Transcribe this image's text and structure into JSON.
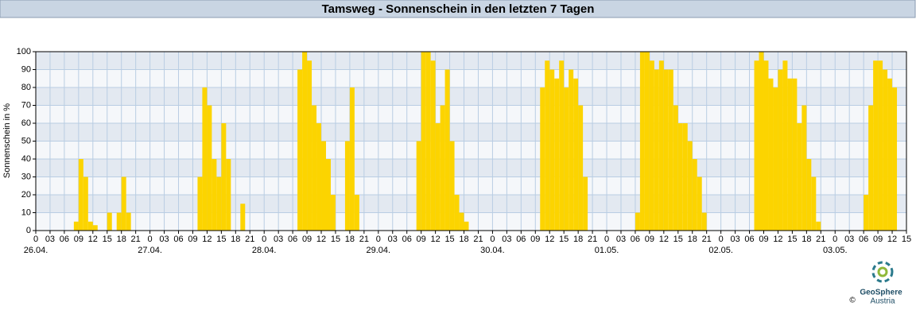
{
  "chart_data": {
    "type": "bar",
    "title": "Tamsweg - Sonnenschein in den letzten 7 Tagen",
    "y_label": "Sonnenschein in %",
    "color": "#fcd400",
    "grid": true,
    "xlim": [
      0,
      183
    ],
    "ylim": [
      0,
      100
    ],
    "yticks": [
      0,
      10,
      20,
      30,
      40,
      50,
      60,
      70,
      80,
      90,
      100
    ],
    "xticks": [
      0,
      {
        "value": 3,
        "label": "03"
      },
      {
        "value": 6,
        "label": "06"
      },
      {
        "value": 9,
        "label": "09"
      },
      12,
      15,
      18,
      21,
      {
        "value": 24,
        "label": "0"
      },
      {
        "value": 27,
        "label": "03"
      },
      {
        "value": 30,
        "label": "06"
      },
      {
        "value": 33,
        "label": "09"
      },
      {
        "value": 36,
        "label": "12"
      },
      {
        "value": 39,
        "label": "15"
      },
      {
        "value": 42,
        "label": "18"
      },
      {
        "value": 45,
        "label": "21"
      },
      {
        "value": 48,
        "label": "0"
      },
      {
        "value": 51,
        "label": "03"
      },
      {
        "value": 54,
        "label": "06"
      },
      {
        "value": 57,
        "label": "09"
      },
      {
        "value": 60,
        "label": "12"
      },
      {
        "value": 63,
        "label": "15"
      },
      {
        "value": 66,
        "label": "18"
      },
      {
        "value": 69,
        "label": "21"
      },
      {
        "value": 72,
        "label": "0"
      },
      {
        "value": 75,
        "label": "03"
      },
      {
        "value": 78,
        "label": "06"
      },
      {
        "value": 81,
        "label": "09"
      },
      {
        "value": 84,
        "label": "12"
      },
      {
        "value": 87,
        "label": "15"
      },
      {
        "value": 90,
        "label": "18"
      },
      {
        "value": 93,
        "label": "21"
      },
      {
        "value": 96,
        "label": "0"
      },
      {
        "value": 99,
        "label": "03"
      },
      {
        "value": 102,
        "label": "06"
      },
      {
        "value": 105,
        "label": "09"
      },
      {
        "value": 108,
        "label": "12"
      },
      {
        "value": 111,
        "label": "15"
      },
      {
        "value": 114,
        "label": "18"
      },
      {
        "value": 117,
        "label": "21"
      },
      {
        "value": 120,
        "label": "0"
      },
      {
        "value": 123,
        "label": "03"
      },
      {
        "value": 126,
        "label": "06"
      },
      {
        "value": 129,
        "label": "09"
      },
      {
        "value": 132,
        "label": "12"
      },
      {
        "value": 135,
        "label": "15"
      },
      {
        "value": 138,
        "label": "18"
      },
      {
        "value": 141,
        "label": "21"
      },
      {
        "value": 144,
        "label": "0"
      },
      {
        "value": 147,
        "label": "03"
      },
      {
        "value": 150,
        "label": "06"
      },
      {
        "value": 153,
        "label": "09"
      },
      {
        "value": 156,
        "label": "12"
      },
      {
        "value": 159,
        "label": "15"
      },
      {
        "value": 162,
        "label": "18"
      },
      {
        "value": 165,
        "label": "21"
      },
      {
        "value": 168,
        "label": "0"
      },
      {
        "value": 171,
        "label": "03"
      },
      {
        "value": 174,
        "label": "06"
      },
      {
        "value": 177,
        "label": "09"
      },
      {
        "value": 180,
        "label": "12"
      },
      {
        "value": 183,
        "label": "15"
      }
    ],
    "date_labels": [
      {
        "value": 0,
        "label": "26.04."
      },
      {
        "value": 24,
        "label": "27.04."
      },
      {
        "value": 48,
        "label": "28.04."
      },
      {
        "value": 72,
        "label": "29.04."
      },
      {
        "value": 96,
        "label": "30.04."
      },
      {
        "value": 120,
        "label": "01.05."
      },
      {
        "value": 144,
        "label": "02.05."
      },
      {
        "value": 168,
        "label": "03.05."
      }
    ],
    "x": [
      0,
      1,
      2,
      3,
      4,
      5,
      6,
      7,
      8,
      9,
      10,
      11,
      12,
      13,
      14,
      15,
      16,
      17,
      18,
      19,
      20,
      21,
      22,
      23,
      24,
      25,
      26,
      27,
      28,
      29,
      30,
      31,
      32,
      33,
      34,
      35,
      36,
      37,
      38,
      39,
      40,
      41,
      42,
      43,
      44,
      45,
      46,
      47,
      48,
      49,
      50,
      51,
      52,
      53,
      54,
      55,
      56,
      57,
      58,
      59,
      60,
      61,
      62,
      63,
      64,
      65,
      66,
      67,
      68,
      69,
      70,
      71,
      72,
      73,
      74,
      75,
      76,
      77,
      78,
      79,
      80,
      81,
      82,
      83,
      84,
      85,
      86,
      87,
      88,
      89,
      90,
      91,
      92,
      93,
      94,
      95,
      96,
      97,
      98,
      99,
      100,
      101,
      102,
      103,
      104,
      105,
      106,
      107,
      108,
      109,
      110,
      111,
      112,
      113,
      114,
      115,
      116,
      117,
      118,
      119,
      120,
      121,
      122,
      123,
      124,
      125,
      126,
      127,
      128,
      129,
      130,
      131,
      132,
      133,
      134,
      135,
      136,
      137,
      138,
      139,
      140,
      141,
      142,
      143,
      144,
      145,
      146,
      147,
      148,
      149,
      150,
      151,
      152,
      153,
      154,
      155,
      156,
      157,
      158,
      159,
      160,
      161,
      162,
      163,
      164,
      165,
      166,
      167,
      168,
      169,
      170,
      171,
      172,
      173,
      174,
      175,
      176,
      177,
      178,
      179,
      180,
      181,
      182
    ],
    "values": [
      0,
      0,
      0,
      0,
      0,
      0,
      0,
      0,
      5,
      40,
      30,
      5,
      3,
      0,
      0,
      10,
      0,
      10,
      30,
      10,
      0,
      0,
      0,
      0,
      0,
      0,
      0,
      0,
      0,
      0,
      0,
      0,
      0,
      0,
      30,
      80,
      70,
      40,
      30,
      60,
      40,
      0,
      0,
      15,
      0,
      0,
      0,
      0,
      0,
      0,
      0,
      0,
      0,
      0,
      0,
      90,
      100,
      95,
      70,
      60,
      50,
      40,
      20,
      0,
      0,
      50,
      80,
      20,
      0,
      0,
      0,
      0,
      0,
      0,
      0,
      0,
      0,
      0,
      0,
      0,
      50,
      100,
      100,
      95,
      60,
      70,
      90,
      50,
      20,
      10,
      5,
      0,
      0,
      0,
      0,
      0,
      0,
      0,
      0,
      0,
      0,
      0,
      0,
      0,
      0,
      0,
      80,
      95,
      90,
      85,
      95,
      80,
      90,
      85,
      70,
      30,
      0,
      0,
      0,
      0,
      0,
      0,
      0,
      0,
      0,
      0,
      10,
      100,
      100,
      95,
      90,
      95,
      90,
      90,
      70,
      60,
      60,
      50,
      40,
      30,
      10,
      0,
      0,
      0,
      0,
      0,
      0,
      0,
      0,
      0,
      0,
      95,
      100,
      95,
      85,
      80,
      90,
      95,
      85,
      85,
      60,
      70,
      40,
      30,
      5,
      0,
      0,
      0,
      0,
      0,
      0,
      0,
      0,
      0,
      20,
      70,
      95,
      95,
      90,
      85,
      80,
      0,
      0
    ]
  },
  "logo": {
    "name": "GeoSphere",
    "sub": "Austria",
    "copyright": "©"
  }
}
